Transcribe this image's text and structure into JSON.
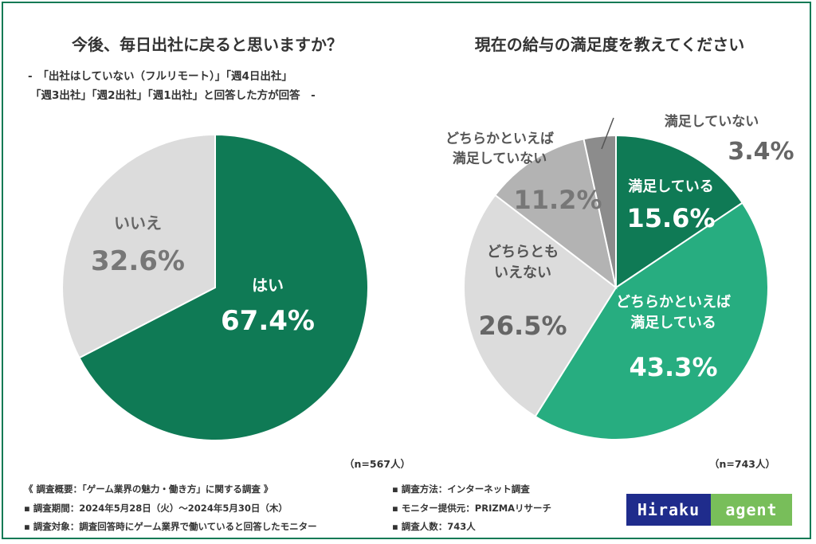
{
  "chart_data": [
    {
      "type": "pie",
      "title": "今後、毎日出社に戻ると思いますか？",
      "subtitle_lines": [
        "-　「出社はしていない（フルリモート）」「週4日出社」",
        "「週3出社」「週2出社」「週1出社」と回答した方が回答　-"
      ],
      "slices": [
        {
          "label": "はい",
          "value": 67.4,
          "value_text": "67.4%",
          "color": "#0f7a55"
        },
        {
          "label": "いいえ",
          "value": 32.6,
          "value_text": "32.6%",
          "color": "#dcdcdc"
        }
      ],
      "sample": "（n=567人）"
    },
    {
      "type": "pie",
      "title": "現在の給与の満足度を教えてください",
      "slices": [
        {
          "label": "満足している",
          "value": 15.6,
          "value_text": "15.6%",
          "color": "#0f7a55"
        },
        {
          "label": "どちらかといえば\n満足している",
          "value": 43.3,
          "value_text": "43.3%",
          "color": "#27ad80"
        },
        {
          "label": "どちらとも\nいえない",
          "value": 26.5,
          "value_text": "26.5%",
          "color": "#dcdcdc"
        },
        {
          "label": "どちらかといえば\n満足していない",
          "value": 11.2,
          "value_text": "11.2%",
          "color": "#b3b3b3"
        },
        {
          "label": "満足していない",
          "value": 3.4,
          "value_text": "3.4%",
          "color": "#8c8c8c"
        }
      ],
      "sample": "（n=743人）"
    }
  ],
  "footer": {
    "left": [
      "《 調査概要：「ゲーム業界の魅力・働き方」に関する調査 》",
      "▪ 調査期間：2024年5月28日（火）～2024年5月30日（木）",
      "▪ 調査対象：調査回答時にゲーム業界で働いていると回答したモニター"
    ],
    "right": [
      "▪ 調査方法：インターネット調査",
      "▪ モニター提供元：PRIZMAリサーチ",
      "▪ 調査人数：743人"
    ]
  },
  "logo": {
    "left": "Hiraku",
    "right": "agent",
    "left_color": "#1f2c8c",
    "right_color": "#78be5a"
  }
}
